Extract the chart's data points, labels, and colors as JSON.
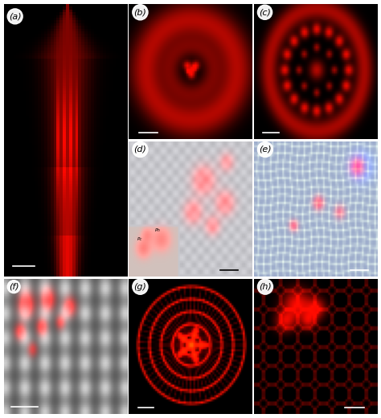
{
  "panels": [
    "a",
    "b",
    "c",
    "d",
    "e",
    "f",
    "g",
    "h"
  ],
  "bg_color": "#000000",
  "label_color": "#ffffff",
  "label_fontsize": 8,
  "figure_bg": "#ffffff",
  "border_color": "#ffffff",
  "border_lw": 0.5
}
